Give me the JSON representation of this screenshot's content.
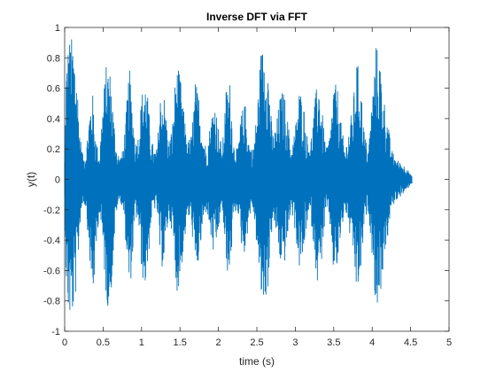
{
  "chart_data": {
    "type": "line",
    "title": "Inverse DFT via FFT",
    "xlabel": "time (s)",
    "ylabel": "y(t)",
    "xlim": [
      0,
      5
    ],
    "ylim": [
      -1,
      1
    ],
    "x_ticks": [
      0,
      0.5,
      1,
      1.5,
      2,
      2.5,
      3,
      3.5,
      4,
      4.5,
      5
    ],
    "x_tick_labels": [
      "0",
      "0.5",
      "1",
      "1.5",
      "2",
      "2.5",
      "3",
      "3.5",
      "4",
      "4.5",
      "5"
    ],
    "y_ticks": [
      -1,
      -0.8,
      -0.6,
      -0.4,
      -0.2,
      0,
      0.2,
      0.4,
      0.6,
      0.8,
      1
    ],
    "y_tick_labels": [
      "-1",
      "-0.8",
      "-0.6",
      "-0.4",
      "-0.2",
      "0",
      "0.2",
      "0.4",
      "0.6",
      "0.8",
      "1"
    ],
    "grid": false,
    "series": [
      {
        "color": "#0072bd",
        "envelope": {
          "t": [
            0,
            0.02,
            0.05,
            0.08,
            0.12,
            0.16,
            0.2,
            0.24,
            0.28,
            0.32,
            0.36,
            0.4,
            0.45,
            0.5,
            0.55,
            0.6,
            0.64,
            0.68,
            0.72,
            0.76,
            0.8,
            0.84,
            0.88,
            0.92,
            0.96,
            1.0,
            1.04,
            1.08,
            1.12,
            1.16,
            1.2,
            1.25,
            1.3,
            1.35,
            1.4,
            1.45,
            1.5,
            1.55,
            1.6,
            1.65,
            1.7,
            1.75,
            1.8,
            1.85,
            1.9,
            1.95,
            2.0,
            2.05,
            2.1,
            2.15,
            2.2,
            2.25,
            2.3,
            2.35,
            2.4,
            2.45,
            2.5,
            2.55,
            2.6,
            2.65,
            2.7,
            2.75,
            2.8,
            2.85,
            2.9,
            2.95,
            3.0,
            3.05,
            3.1,
            3.15,
            3.2,
            3.25,
            3.3,
            3.35,
            3.4,
            3.45,
            3.5,
            3.55,
            3.6,
            3.65,
            3.7,
            3.75,
            3.8,
            3.85,
            3.9,
            3.95,
            4.0,
            4.05,
            4.1,
            4.15,
            4.2,
            4.25,
            4.3,
            4.35,
            4.4,
            4.45,
            4.5
          ],
          "upper": [
            0.15,
            0.75,
            0.92,
            0.95,
            0.9,
            0.7,
            0.3,
            0.15,
            0.2,
            0.45,
            0.6,
            0.3,
            0.15,
            0.55,
            0.8,
            0.7,
            0.4,
            0.2,
            0.15,
            0.2,
            0.45,
            0.75,
            0.5,
            0.25,
            0.3,
            0.55,
            0.7,
            0.55,
            0.3,
            0.2,
            0.2,
            0.6,
            0.55,
            0.25,
            0.35,
            0.75,
            0.7,
            0.45,
            0.25,
            0.3,
            0.65,
            0.55,
            0.3,
            0.2,
            0.4,
            0.55,
            0.35,
            0.2,
            0.6,
            0.65,
            0.25,
            0.2,
            0.45,
            0.5,
            0.25,
            0.2,
            0.45,
            0.85,
            0.9,
            0.75,
            0.3,
            0.35,
            0.55,
            0.6,
            0.4,
            0.2,
            0.35,
            0.6,
            0.55,
            0.3,
            0.25,
            0.5,
            0.7,
            0.45,
            0.2,
            0.3,
            0.65,
            0.6,
            0.35,
            0.2,
            0.35,
            0.5,
            0.8,
            0.65,
            0.3,
            0.2,
            0.55,
            0.9,
            0.8,
            0.55,
            0.4,
            0.2,
            0.15,
            0.12,
            0.1,
            0.08,
            0.03
          ],
          "lower": [
            -0.12,
            -0.7,
            -0.92,
            -0.95,
            -0.88,
            -0.68,
            -0.3,
            -0.15,
            -0.2,
            -0.5,
            -0.85,
            -0.6,
            -0.2,
            -0.5,
            -0.85,
            -0.8,
            -0.45,
            -0.2,
            -0.15,
            -0.2,
            -0.45,
            -0.8,
            -0.55,
            -0.25,
            -0.3,
            -0.6,
            -0.75,
            -0.6,
            -0.3,
            -0.2,
            -0.2,
            -0.6,
            -0.55,
            -0.25,
            -0.35,
            -0.75,
            -0.7,
            -0.45,
            -0.25,
            -0.3,
            -0.65,
            -0.55,
            -0.3,
            -0.2,
            -0.4,
            -0.55,
            -0.35,
            -0.2,
            -0.6,
            -0.65,
            -0.25,
            -0.2,
            -0.45,
            -0.5,
            -0.25,
            -0.2,
            -0.45,
            -0.8,
            -0.85,
            -0.7,
            -0.3,
            -0.35,
            -0.55,
            -0.6,
            -0.4,
            -0.2,
            -0.35,
            -0.6,
            -0.55,
            -0.3,
            -0.25,
            -0.5,
            -0.75,
            -0.5,
            -0.2,
            -0.3,
            -0.65,
            -0.6,
            -0.35,
            -0.2,
            -0.35,
            -0.5,
            -0.78,
            -0.65,
            -0.3,
            -0.2,
            -0.5,
            -0.88,
            -0.8,
            -0.55,
            -0.4,
            -0.2,
            -0.15,
            -0.12,
            -0.1,
            -0.08,
            -0.03
          ]
        },
        "sample_step": 0.0025,
        "t_end": 4.52
      }
    ]
  }
}
